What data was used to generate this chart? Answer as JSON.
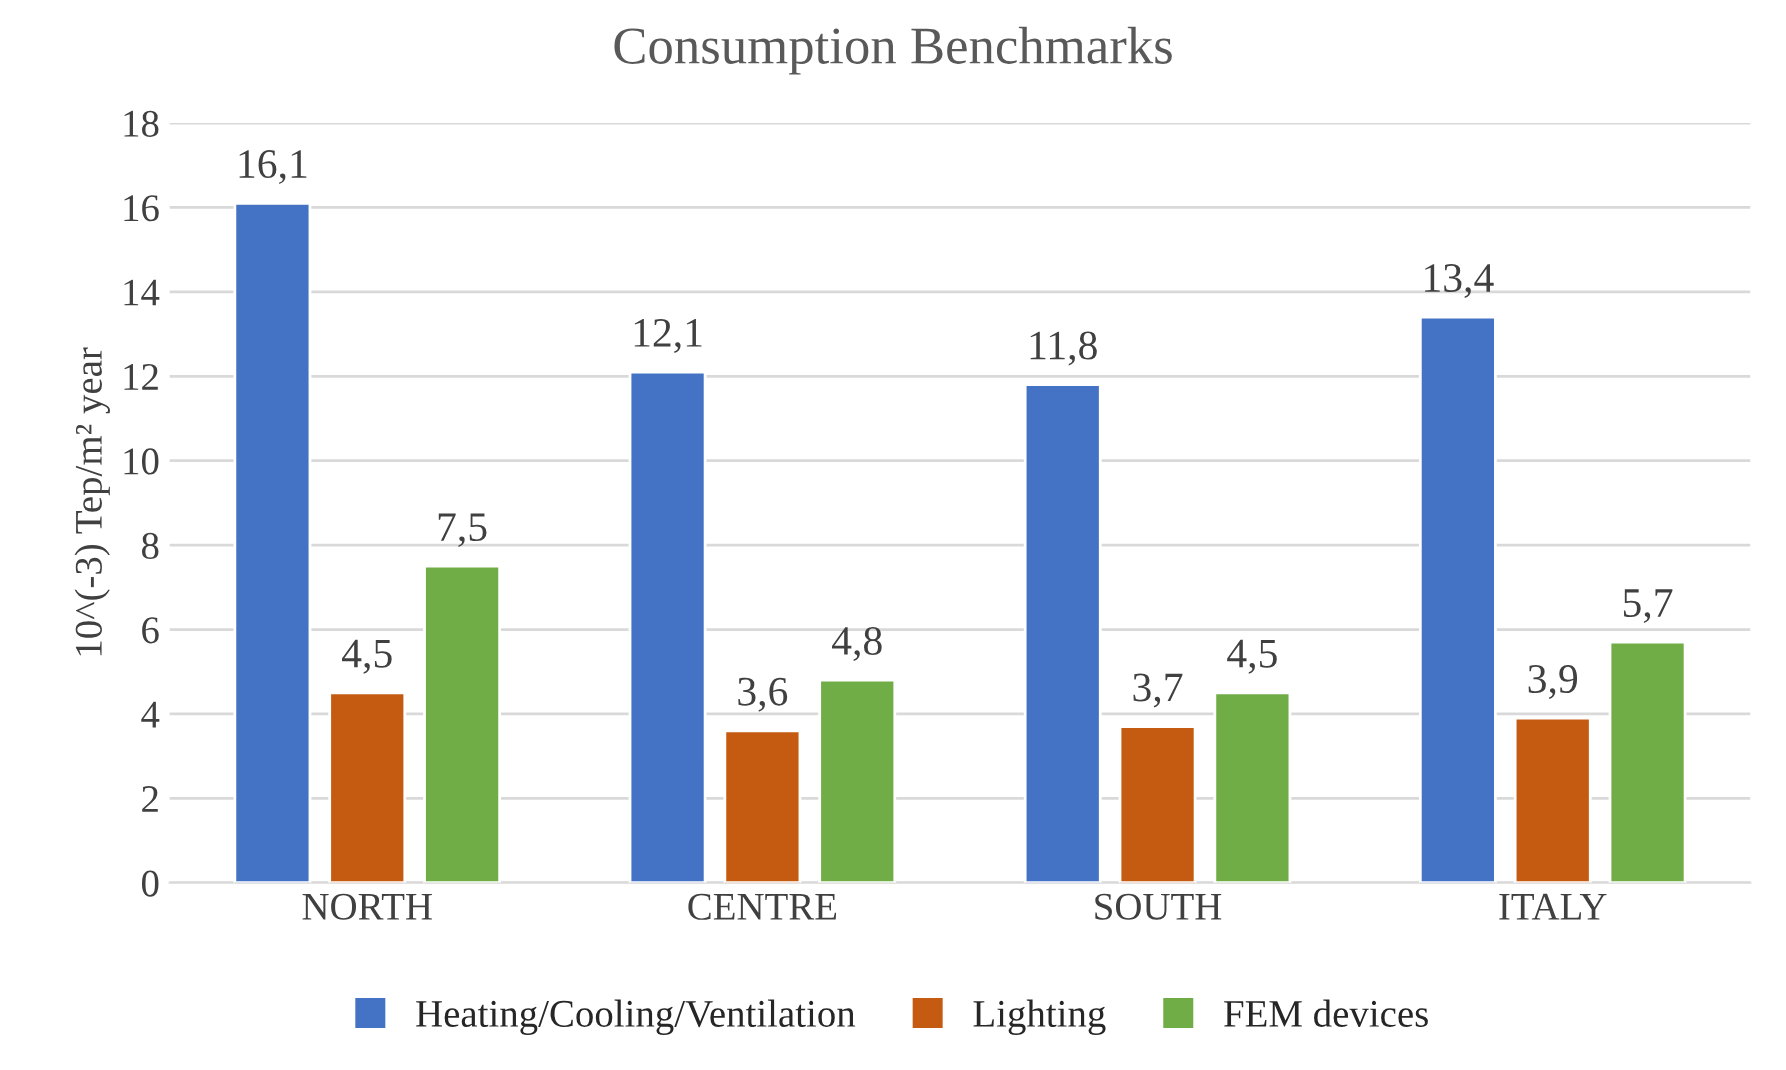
{
  "chart_data": {
    "type": "bar",
    "title": "Consumption Benchmarks",
    "ylabel": "10^(-3) Tep/m² year",
    "categories": [
      "NORTH",
      "CENTRE",
      "SOUTH",
      "ITALY"
    ],
    "series": [
      {
        "name": "Heating/Cooling/Ventilation",
        "color": "#4472c4",
        "values": [
          16.1,
          12.1,
          11.8,
          13.4
        ],
        "value_labels": [
          "16,1",
          "12,1",
          "11,8",
          "13,4"
        ]
      },
      {
        "name": "Lighting",
        "color": "#c55a11",
        "values": [
          4.5,
          3.6,
          3.7,
          3.9
        ],
        "value_labels": [
          "4,5",
          "3,6",
          "3,7",
          "3,9"
        ]
      },
      {
        "name": "FEM devices",
        "color": "#70ad47",
        "values": [
          7.5,
          4.8,
          4.5,
          5.7
        ],
        "value_labels": [
          "7,5",
          "4,8",
          "4,5",
          "5,7"
        ]
      }
    ],
    "ylim": [
      0,
      18
    ],
    "yticks": [
      0,
      2,
      4,
      6,
      8,
      10,
      12,
      14,
      16,
      18
    ],
    "grid": "y",
    "legend": "bottom"
  }
}
